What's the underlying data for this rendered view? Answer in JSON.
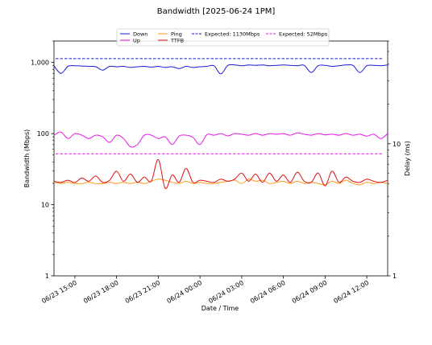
{
  "chart_data": {
    "type": "line",
    "title": "Bandwidth [2025-06-24 1PM]",
    "xlabel": "Date / Time",
    "ylabel": "Bandwidth (Mbps)",
    "y2label": "Delay (ms)",
    "y_scale": "log",
    "ylim": [
      1,
      2000
    ],
    "y2_scale": "log",
    "y2lim": [
      1,
      60
    ],
    "y_ticks": [
      1,
      10,
      100,
      1000
    ],
    "y_tick_labels": [
      "1",
      "10",
      "100",
      "1,000"
    ],
    "y2_ticks": [
      1,
      10
    ],
    "y2_tick_labels": [
      "1",
      "10"
    ],
    "xlim": [
      "2025-06-23 13:30",
      "2025-06-24 13:30"
    ],
    "x_ticks": [
      "2025-06-23 15:00",
      "2025-06-23 18:00",
      "2025-06-23 21:00",
      "2025-06-24 00:00",
      "2025-06-24 03:00",
      "2025-06-24 06:00",
      "2025-06-24 09:00",
      "2025-06-24 12:00"
    ],
    "x_tick_labels": [
      "06/23 15:00",
      "06/23 18:00",
      "06/23 21:00",
      "06/24 00:00",
      "06/24 03:00",
      "06/24 06:00",
      "06/24 09:00",
      "06/24 12:00"
    ],
    "grid": false,
    "legend_position": "top-center",
    "x": [
      "2025-06-23 13:30",
      "2025-06-23 14:00",
      "2025-06-23 14:30",
      "2025-06-23 15:00",
      "2025-06-23 15:30",
      "2025-06-23 16:00",
      "2025-06-23 16:30",
      "2025-06-23 17:00",
      "2025-06-23 17:30",
      "2025-06-23 18:00",
      "2025-06-23 18:30",
      "2025-06-23 19:00",
      "2025-06-23 19:30",
      "2025-06-23 20:00",
      "2025-06-23 20:30",
      "2025-06-23 21:00",
      "2025-06-23 21:30",
      "2025-06-23 22:00",
      "2025-06-23 22:30",
      "2025-06-23 23:00",
      "2025-06-23 23:30",
      "2025-06-24 00:00",
      "2025-06-24 00:30",
      "2025-06-24 01:00",
      "2025-06-24 01:30",
      "2025-06-24 02:00",
      "2025-06-24 02:30",
      "2025-06-24 03:00",
      "2025-06-24 03:30",
      "2025-06-24 04:00",
      "2025-06-24 04:30",
      "2025-06-24 05:00",
      "2025-06-24 05:30",
      "2025-06-24 06:00",
      "2025-06-24 06:30",
      "2025-06-24 07:00",
      "2025-06-24 07:30",
      "2025-06-24 08:00",
      "2025-06-24 08:30",
      "2025-06-24 09:00",
      "2025-06-24 09:30",
      "2025-06-24 10:00",
      "2025-06-24 10:30",
      "2025-06-24 11:00",
      "2025-06-24 11:30",
      "2025-06-24 12:00",
      "2025-06-24 12:30",
      "2025-06-24 13:00",
      "2025-06-24 13:30"
    ],
    "series": [
      {
        "name": "Down",
        "axis": "left",
        "color": "#1a1adb",
        "dash": false,
        "values": [
          900,
          700,
          880,
          900,
          890,
          880,
          870,
          780,
          880,
          870,
          880,
          850,
          870,
          880,
          860,
          880,
          850,
          870,
          820,
          880,
          850,
          870,
          880,
          900,
          690,
          910,
          920,
          900,
          920,
          910,
          920,
          900,
          910,
          920,
          910,
          900,
          910,
          720,
          900,
          910,
          880,
          900,
          920,
          910,
          720,
          900,
          910,
          900,
          920
        ]
      },
      {
        "name": "Up",
        "axis": "left",
        "color": "#e617e6",
        "dash": false,
        "values": [
          95,
          105,
          85,
          100,
          95,
          85,
          95,
          90,
          75,
          95,
          85,
          65,
          70,
          95,
          95,
          85,
          90,
          70,
          92,
          95,
          88,
          70,
          97,
          95,
          100,
          93,
          100,
          98,
          95,
          100,
          95,
          100,
          98,
          100,
          95,
          102,
          98,
          95,
          100,
          96,
          98,
          95,
          100,
          95,
          98,
          92,
          98,
          85,
          100
        ]
      },
      {
        "name": "Expected: 1130Mbps",
        "axis": "left",
        "color": "#1a1adb",
        "dash": true,
        "values": [
          1130,
          1130,
          1130,
          1130,
          1130,
          1130,
          1130,
          1130,
          1130,
          1130,
          1130,
          1130,
          1130,
          1130,
          1130,
          1130,
          1130,
          1130,
          1130,
          1130,
          1130,
          1130,
          1130,
          1130,
          1130,
          1130,
          1130,
          1130,
          1130,
          1130,
          1130,
          1130,
          1130,
          1130,
          1130,
          1130,
          1130,
          1130,
          1130,
          1130,
          1130,
          1130,
          1130,
          1130,
          1130,
          1130,
          1130,
          1130,
          1130
        ]
      },
      {
        "name": "Expected: 52Mbps",
        "axis": "left",
        "color": "#e617e6",
        "dash": true,
        "values": [
          52,
          52,
          52,
          52,
          52,
          52,
          52,
          52,
          52,
          52,
          52,
          52,
          52,
          52,
          52,
          52,
          52,
          52,
          52,
          52,
          52,
          52,
          52,
          52,
          52,
          52,
          52,
          52,
          52,
          52,
          52,
          52,
          52,
          52,
          52,
          52,
          52,
          52,
          52,
          52,
          52,
          52,
          52,
          52,
          52,
          52,
          52,
          52,
          52
        ]
      },
      {
        "name": "Ping",
        "axis": "right",
        "color": "#ff9a1a",
        "dash": false,
        "values": [
          5.1,
          5.0,
          5.1,
          5.0,
          5.0,
          5.1,
          5.0,
          5.0,
          5.1,
          5.0,
          5.1,
          5.0,
          5.1,
          5.0,
          5.2,
          5.4,
          5.3,
          5.1,
          5.0,
          5.2,
          5.0,
          5.1,
          5.0,
          5.0,
          5.1,
          5.2,
          5.3,
          5.0,
          5.4,
          5.2,
          5.3,
          5.0,
          5.1,
          5.2,
          5.0,
          5.2,
          5.0,
          5.1,
          5.0,
          4.9,
          5.2,
          5.0,
          5.3,
          5.0,
          4.9,
          5.1,
          5.0,
          5.1,
          5.0
        ]
      },
      {
        "name": "TTFB",
        "axis": "right",
        "color": "#e01010",
        "dash": false,
        "values": [
          5.2,
          5.1,
          5.3,
          5.1,
          5.5,
          5.2,
          5.7,
          5.1,
          5.3,
          6.2,
          5.2,
          5.9,
          5.1,
          5.6,
          5.2,
          7.6,
          4.6,
          5.8,
          5.1,
          6.5,
          5.1,
          5.3,
          5.2,
          5.1,
          5.4,
          5.2,
          5.4,
          6.0,
          5.2,
          5.9,
          5.1,
          6.0,
          5.2,
          5.8,
          5.1,
          6.1,
          5.2,
          5.1,
          6.0,
          4.8,
          6.2,
          5.1,
          5.6,
          5.2,
          5.1,
          5.4,
          5.2,
          5.1,
          5.3
        ]
      }
    ]
  },
  "legend_layout": [
    [
      "Down",
      "Up"
    ],
    [
      "Ping",
      "TTFB"
    ],
    [
      "Expected: 1130Mbps"
    ],
    [
      "Expected: 52Mbps"
    ]
  ]
}
